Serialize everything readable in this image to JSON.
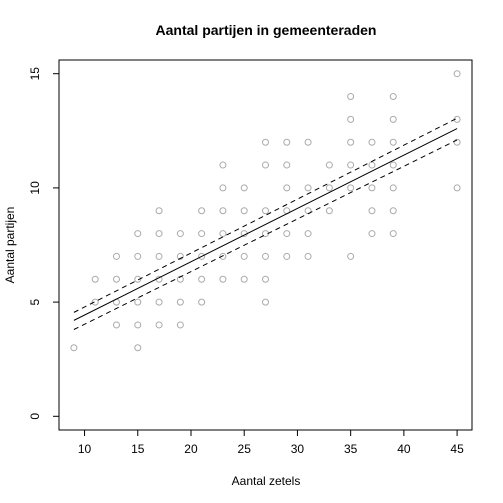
{
  "chart_data": {
    "type": "scatter",
    "title": "Aantal partijen in gemeenteraden",
    "xlabel": "Aantal zetels",
    "ylabel": "Aantal partijen",
    "xlim": [
      7.6,
      46.4
    ],
    "ylim": [
      -0.6,
      15.6
    ],
    "x_ticks": [
      10,
      15,
      20,
      25,
      30,
      35,
      40,
      45
    ],
    "y_ticks": [
      0,
      5,
      10,
      15
    ],
    "grid": false,
    "legend": "none",
    "point_color": "#aaaaaa",
    "line_color": "#000000",
    "points": [
      [
        9,
        3
      ],
      [
        11,
        5
      ],
      [
        11,
        6
      ],
      [
        13,
        4
      ],
      [
        13,
        5
      ],
      [
        13,
        6
      ],
      [
        13,
        7
      ],
      [
        15,
        3
      ],
      [
        15,
        4
      ],
      [
        15,
        5
      ],
      [
        15,
        6
      ],
      [
        15,
        7
      ],
      [
        15,
        8
      ],
      [
        17,
        4
      ],
      [
        17,
        5
      ],
      [
        17,
        6
      ],
      [
        17,
        7
      ],
      [
        17,
        8
      ],
      [
        17,
        9
      ],
      [
        19,
        4
      ],
      [
        19,
        5
      ],
      [
        19,
        6
      ],
      [
        19,
        7
      ],
      [
        19,
        8
      ],
      [
        21,
        5
      ],
      [
        21,
        6
      ],
      [
        21,
        7
      ],
      [
        21,
        8
      ],
      [
        21,
        9
      ],
      [
        23,
        6
      ],
      [
        23,
        7
      ],
      [
        23,
        8
      ],
      [
        23,
        9
      ],
      [
        23,
        10
      ],
      [
        23,
        11
      ],
      [
        25,
        6
      ],
      [
        25,
        7
      ],
      [
        25,
        8
      ],
      [
        25,
        9
      ],
      [
        25,
        10
      ],
      [
        27,
        5
      ],
      [
        27,
        6
      ],
      [
        27,
        7
      ],
      [
        27,
        8
      ],
      [
        27,
        9
      ],
      [
        27,
        11
      ],
      [
        27,
        12
      ],
      [
        29,
        7
      ],
      [
        29,
        8
      ],
      [
        29,
        9
      ],
      [
        29,
        10
      ],
      [
        29,
        11
      ],
      [
        29,
        12
      ],
      [
        31,
        7
      ],
      [
        31,
        8
      ],
      [
        31,
        9
      ],
      [
        31,
        10
      ],
      [
        31,
        12
      ],
      [
        33,
        9
      ],
      [
        33,
        10
      ],
      [
        33,
        11
      ],
      [
        35,
        7
      ],
      [
        35,
        10
      ],
      [
        35,
        11
      ],
      [
        35,
        12
      ],
      [
        35,
        13
      ],
      [
        35,
        14
      ],
      [
        37,
        8
      ],
      [
        37,
        9
      ],
      [
        37,
        10
      ],
      [
        37,
        11
      ],
      [
        37,
        12
      ],
      [
        39,
        8
      ],
      [
        39,
        9
      ],
      [
        39,
        10
      ],
      [
        39,
        11
      ],
      [
        39,
        12
      ],
      [
        39,
        13
      ],
      [
        39,
        14
      ],
      [
        45,
        10
      ],
      [
        45,
        12
      ],
      [
        45,
        13
      ],
      [
        45,
        15
      ]
    ],
    "fit_line": {
      "x": [
        9,
        45
      ],
      "y": [
        4.2,
        12.6
      ]
    },
    "confidence_band": {
      "upper": {
        "x": [
          9,
          45
        ],
        "y": [
          4.55,
          13.05
        ]
      },
      "lower": {
        "x": [
          9,
          45
        ],
        "y": [
          3.8,
          12.1
        ]
      }
    }
  }
}
